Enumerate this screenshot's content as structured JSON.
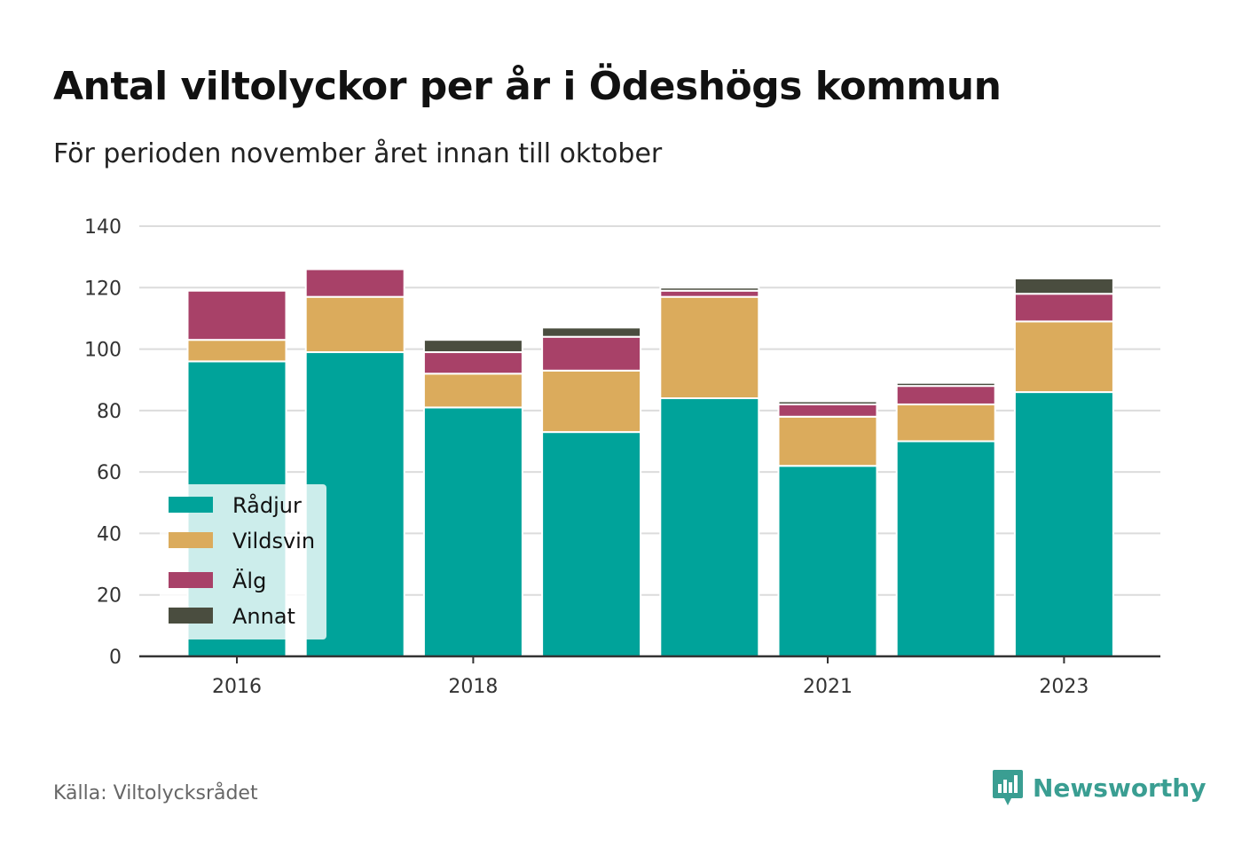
{
  "title": "Antal viltolyckor per år i Ödeshögs kommun",
  "subtitle": "För perioden november året innan till oktober",
  "source": "Källa: Viltolycksrådet",
  "logo": {
    "text": "Newsworthy",
    "icon": "newsworthy-logo-icon",
    "color": "#3a9e92"
  },
  "chart_data": {
    "type": "bar",
    "stacked": true,
    "categories": [
      "2016",
      "2017",
      "2018",
      "2019",
      "2020",
      "2021",
      "2022",
      "2023"
    ],
    "x_tick_labels": [
      "2016",
      "",
      "2018",
      "",
      "",
      "2021",
      "",
      "2023"
    ],
    "series": [
      {
        "name": "Rådjur",
        "color": "#00a39a",
        "values": [
          96,
          99,
          81,
          73,
          84,
          62,
          70,
          86
        ]
      },
      {
        "name": "Vildsvin",
        "color": "#dbab5c",
        "values": [
          7,
          18,
          11,
          20,
          33,
          16,
          12,
          23
        ]
      },
      {
        "name": "Älg",
        "color": "#a84168",
        "values": [
          16,
          9,
          7,
          11,
          2,
          4,
          6,
          9
        ]
      },
      {
        "name": "Annat",
        "color": "#4a4d3f",
        "values": [
          0,
          0,
          4,
          3,
          1,
          1,
          1,
          5
        ]
      }
    ],
    "ylim": [
      0,
      140
    ],
    "yticks": [
      0,
      20,
      40,
      60,
      80,
      100,
      120,
      140
    ],
    "xlabel": "",
    "ylabel": "",
    "grid": true,
    "legend": "bottom-left"
  }
}
